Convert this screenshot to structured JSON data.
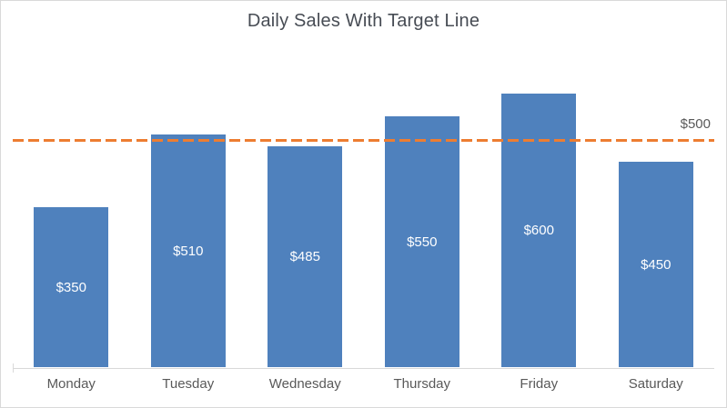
{
  "chart": {
    "title": "Daily Sales With Target Line",
    "colors": {
      "bar_fill": "#4f81bd",
      "target_line": "#ed7d31",
      "data_label_text": "#ffffff",
      "axis_text": "#595959",
      "title_text": "#474c54",
      "axis_line": "#d9d9d9",
      "chart_border": "#d9d9d9",
      "background": "#ffffff"
    }
  },
  "chart_data": {
    "type": "bar",
    "title": "Daily Sales With Target Line",
    "categories": [
      "Monday",
      "Tuesday",
      "Wednesday",
      "Thursday",
      "Friday",
      "Saturday"
    ],
    "values": [
      350,
      510,
      485,
      550,
      600,
      450
    ],
    "data_labels": [
      "$350",
      "$510",
      "$485",
      "$550",
      "$600",
      "$450"
    ],
    "series_name": "Daily Sales",
    "target_line": {
      "value": 500,
      "label": "$500",
      "style": "dashed",
      "color": "#ed7d31"
    },
    "xlabel": "",
    "ylabel": "",
    "ylim": [
      0,
      700
    ],
    "grid": false,
    "legend": false,
    "y_axis_tick_labels_visible": false,
    "data_label_position": "center-inside-bar"
  }
}
